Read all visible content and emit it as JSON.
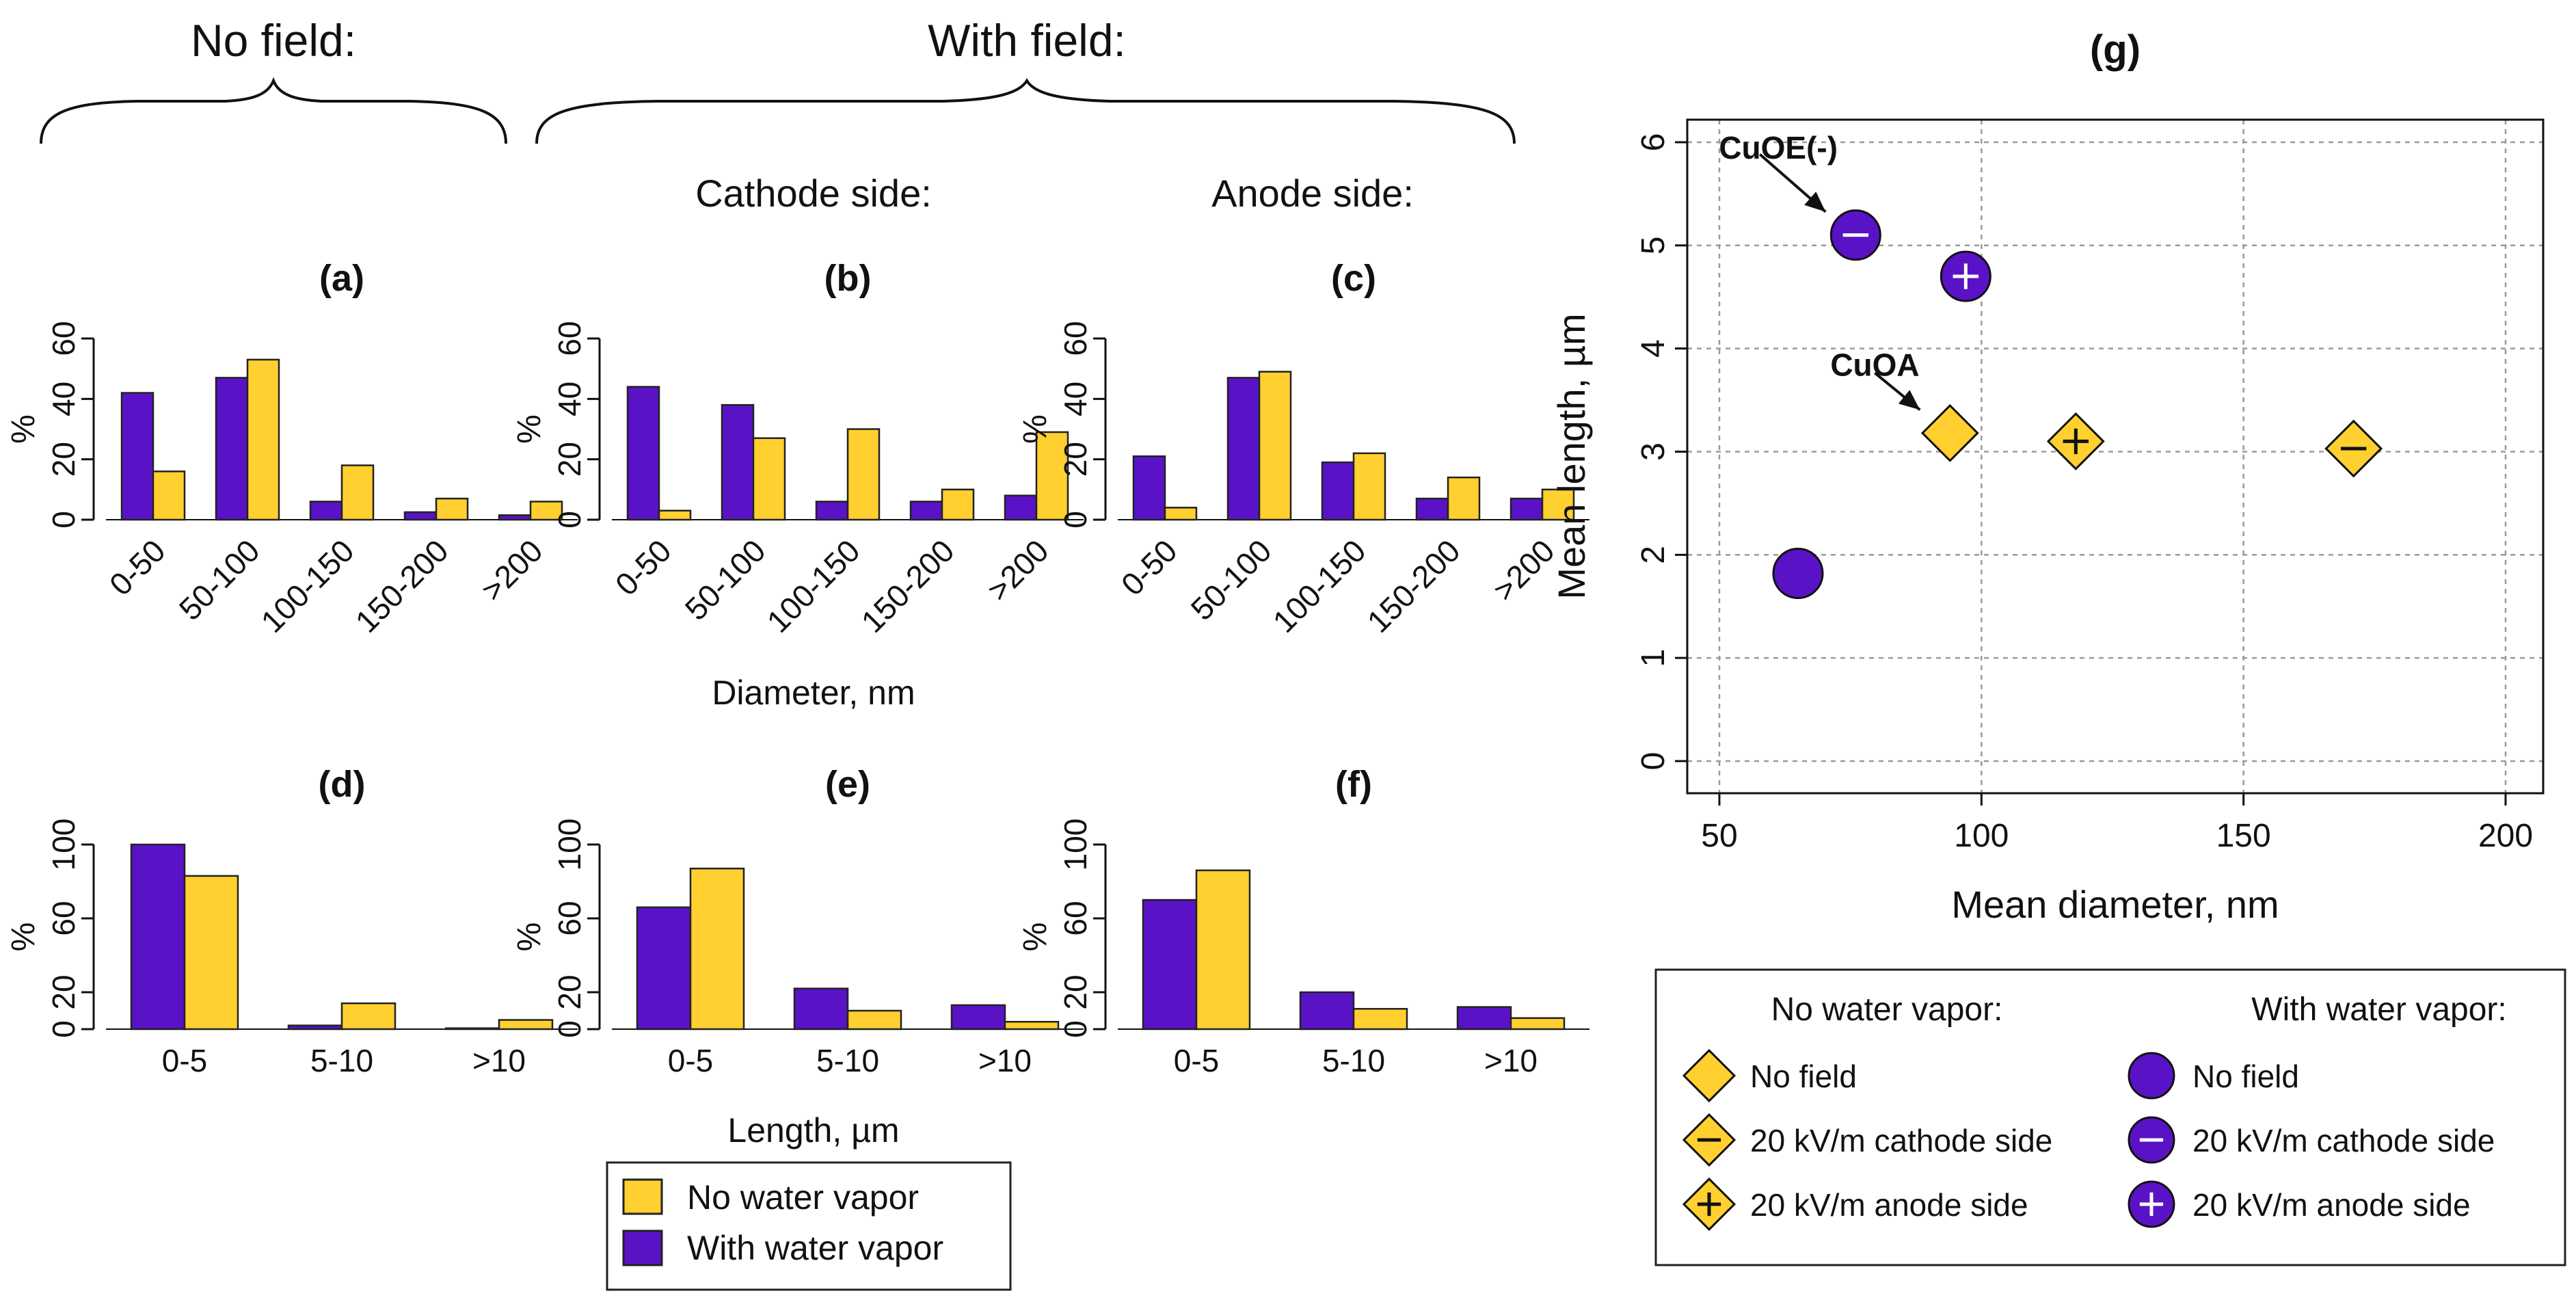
{
  "figure": {
    "header_no_field": "No field:",
    "header_with_field": "With field:",
    "header_cathode": "Cathode side:",
    "header_anode": "Anode side:",
    "diameter_xlabel": "Diameter, nm",
    "length_xlabel": "Length, µm"
  },
  "colors": {
    "no_water": "#FFD02F",
    "with_water": "#5A12C6",
    "stroke": "#222222",
    "grid": "#9a9a9a"
  },
  "bar_legend": {
    "items": [
      {
        "label": "No water vapor",
        "color": "#FFD02F"
      },
      {
        "label": "With water vapor",
        "color": "#5A12C6"
      }
    ]
  },
  "chart_data": [
    {
      "id": "a",
      "type": "bar",
      "title": "(a)",
      "ylabel": "%",
      "ylim": [
        0,
        60
      ],
      "yticks": [
        "0",
        "20",
        "40",
        "60"
      ],
      "categories": [
        "0-50",
        "50-100",
        "100-150",
        "150-200",
        ">200"
      ],
      "series": [
        {
          "name": "With water vapor",
          "values": [
            42,
            47,
            6,
            2.5,
            1.5
          ]
        },
        {
          "name": "No water vapor",
          "values": [
            16,
            53,
            18,
            7,
            6
          ]
        }
      ]
    },
    {
      "id": "b",
      "type": "bar",
      "title": "(b)",
      "ylabel": "%",
      "ylim": [
        0,
        60
      ],
      "yticks": [
        "0",
        "20",
        "40",
        "60"
      ],
      "categories": [
        "0-50",
        "50-100",
        "100-150",
        "150-200",
        ">200"
      ],
      "series": [
        {
          "name": "With water vapor",
          "values": [
            44,
            38,
            6,
            6,
            8
          ]
        },
        {
          "name": "No water vapor",
          "values": [
            3,
            27,
            30,
            10,
            29
          ]
        }
      ]
    },
    {
      "id": "c",
      "type": "bar",
      "title": "(c)",
      "ylabel": "%",
      "ylim": [
        0,
        60
      ],
      "yticks": [
        "0",
        "20",
        "40",
        "60"
      ],
      "categories": [
        "0-50",
        "50-100",
        "100-150",
        "150-200",
        ">200"
      ],
      "series": [
        {
          "name": "With water vapor",
          "values": [
            21,
            47,
            19,
            7,
            7
          ]
        },
        {
          "name": "No water vapor",
          "values": [
            4,
            49,
            22,
            14,
            10
          ]
        }
      ]
    },
    {
      "id": "d",
      "type": "bar",
      "title": "(d)",
      "ylabel": "%",
      "ylim": [
        0,
        100
      ],
      "yticks": [
        "0",
        "20",
        "60",
        "100"
      ],
      "categories": [
        "0-5",
        "5-10",
        ">10"
      ],
      "series": [
        {
          "name": "With water vapor",
          "values": [
            100,
            2,
            0.5
          ]
        },
        {
          "name": "No water vapor",
          "values": [
            83,
            14,
            5
          ]
        }
      ]
    },
    {
      "id": "e",
      "type": "bar",
      "title": "(e)",
      "ylabel": "%",
      "ylim": [
        0,
        100
      ],
      "yticks": [
        "0",
        "20",
        "60",
        "100"
      ],
      "categories": [
        "0-5",
        "5-10",
        ">10"
      ],
      "series": [
        {
          "name": "With water vapor",
          "values": [
            66,
            22,
            13
          ]
        },
        {
          "name": "No water vapor",
          "values": [
            87,
            10,
            4
          ]
        }
      ]
    },
    {
      "id": "f",
      "type": "bar",
      "title": "(f)",
      "ylabel": "%",
      "ylim": [
        0,
        100
      ],
      "yticks": [
        "0",
        "20",
        "60",
        "100"
      ],
      "categories": [
        "0-5",
        "5-10",
        ">10"
      ],
      "series": [
        {
          "name": "With water vapor",
          "values": [
            70,
            20,
            12
          ]
        },
        {
          "name": "No water vapor",
          "values": [
            86,
            11,
            6
          ]
        }
      ]
    },
    {
      "id": "g",
      "type": "scatter",
      "title": "(g)",
      "xlabel": "Mean diameter, nm",
      "ylabel": "Mean length, µm",
      "xlim": [
        50,
        200
      ],
      "ylim": [
        0,
        6
      ],
      "grid": true,
      "xticks": [
        50,
        100,
        150,
        200
      ],
      "yticks": [
        0,
        1,
        2,
        3,
        4,
        5,
        6
      ],
      "points": [
        {
          "x": 65,
          "y": 1.82,
          "group": "With water vapor",
          "marker": "circle",
          "sign": ""
        },
        {
          "x": 76,
          "y": 5.1,
          "group": "With water vapor",
          "marker": "circle",
          "sign": "minus"
        },
        {
          "x": 97,
          "y": 4.7,
          "group": "With water vapor",
          "marker": "circle",
          "sign": "plus"
        },
        {
          "x": 94,
          "y": 3.18,
          "group": "No water vapor",
          "marker": "diamond",
          "sign": ""
        },
        {
          "x": 118,
          "y": 3.1,
          "group": "No water vapor",
          "marker": "diamond",
          "sign": "plus"
        },
        {
          "x": 171,
          "y": 3.03,
          "group": "No water vapor",
          "marker": "diamond",
          "sign": "minus"
        }
      ],
      "annotations": [
        {
          "text": "CuOE(-)",
          "x": 76,
          "y": 5.1
        },
        {
          "text": "CuOA",
          "x": 94,
          "y": 3.18
        }
      ],
      "legend": {
        "col1_title": "No water vapor:",
        "col2_title": "With water vapor:",
        "col1": [
          {
            "label": "No field",
            "marker": "diamond",
            "sign": ""
          },
          {
            "label": "20 kV/m cathode side",
            "marker": "diamond",
            "sign": "minus"
          },
          {
            "label": "20 kV/m anode side",
            "marker": "diamond",
            "sign": "plus"
          }
        ],
        "col2": [
          {
            "label": "No field",
            "marker": "circle",
            "sign": ""
          },
          {
            "label": "20 kV/m cathode side",
            "marker": "circle",
            "sign": "minus"
          },
          {
            "label": "20 kV/m anode side",
            "marker": "circle",
            "sign": "plus"
          }
        ]
      }
    }
  ]
}
